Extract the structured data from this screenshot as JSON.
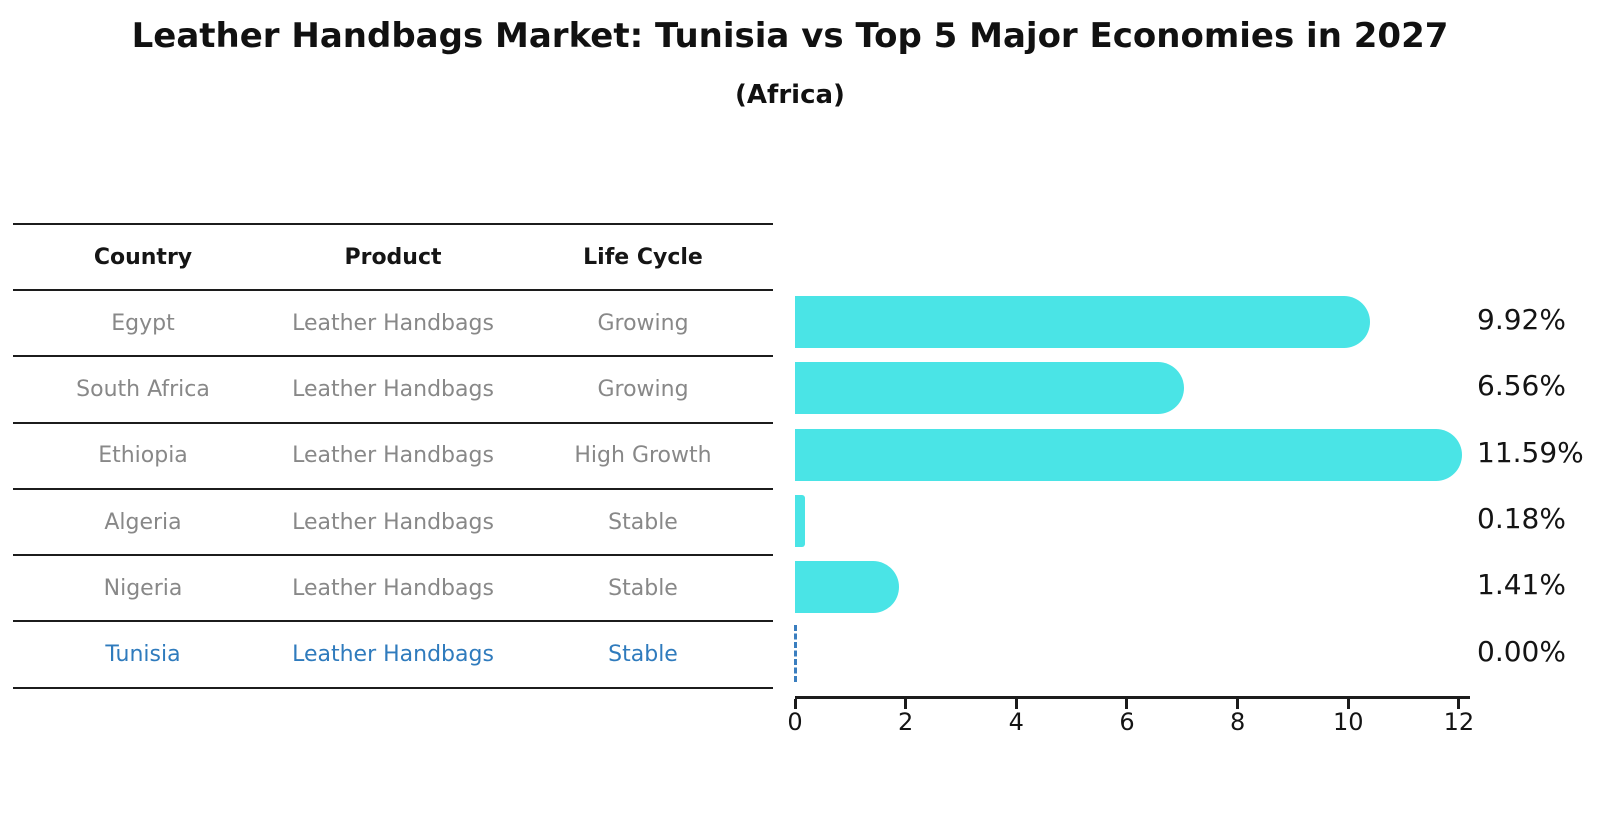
{
  "title": "Leather Handbags Market: Tunisia vs Top 5 Major Economies in 2027",
  "subtitle": "(Africa)",
  "table": {
    "headers": [
      "Country",
      "Product",
      "Life Cycle"
    ],
    "rows": [
      {
        "country": "Egypt",
        "product": "Leather Handbags",
        "life_cycle": "Growing",
        "highlight": false
      },
      {
        "country": "South Africa",
        "product": "Leather Handbags",
        "life_cycle": "Growing",
        "highlight": false
      },
      {
        "country": "Ethiopia",
        "product": "Leather Handbags",
        "life_cycle": "High Growth",
        "highlight": false
      },
      {
        "country": "Algeria",
        "product": "Leather Handbags",
        "life_cycle": "Stable",
        "highlight": false
      },
      {
        "country": "Nigeria",
        "product": "Leather Handbags",
        "life_cycle": "Stable",
        "highlight": false
      },
      {
        "country": "Tunisia",
        "product": "Leather Handbags",
        "life_cycle": "Stable",
        "highlight": true
      }
    ]
  },
  "chart_data": {
    "type": "bar",
    "orientation": "horizontal",
    "title": "Leather Handbags Market: Tunisia vs Top 5 Major Economies in 2027 (Africa)",
    "categories": [
      "Egypt",
      "South Africa",
      "Ethiopia",
      "Algeria",
      "Nigeria",
      "Tunisia"
    ],
    "values": [
      9.92,
      6.56,
      11.59,
      0.18,
      1.41,
      0.0
    ],
    "value_labels": [
      "9.92%",
      "6.56%",
      "11.59%",
      "0.18%",
      "1.41%",
      "0.00%"
    ],
    "x_ticks": [
      0,
      2,
      4,
      6,
      8,
      10,
      12
    ],
    "xlim": [
      0,
      12.2
    ],
    "grid": false,
    "legend": false,
    "bar_color": "#4ae4e6",
    "highlight_marker": "dashed-zero-line",
    "highlight_color": "#3a7ebf"
  },
  "colors": {
    "background": "#ffffff",
    "text": "#141414",
    "muted_text": "#888888",
    "highlight_text": "#2f7bbd",
    "bar": "#4ae4e6",
    "line": "#1c1c1c"
  }
}
